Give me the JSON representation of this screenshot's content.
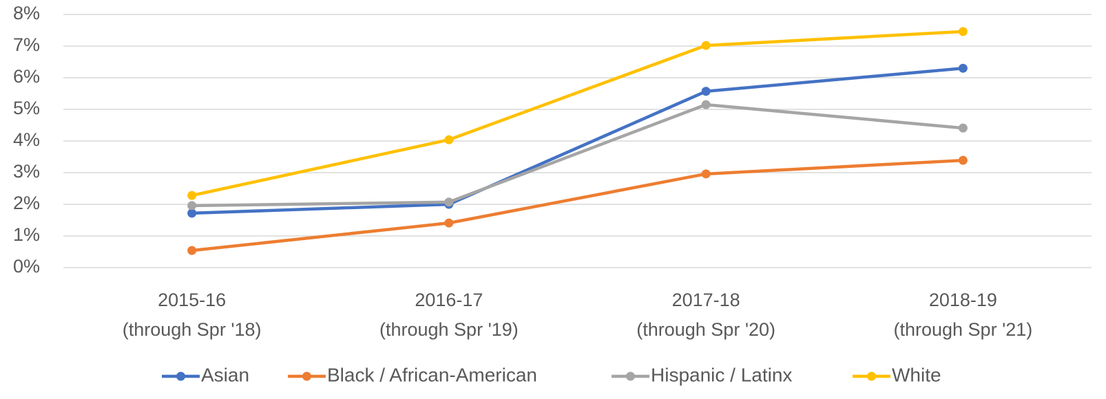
{
  "chart_data": {
    "type": "line",
    "categories": [
      [
        "2015-16",
        "(through Spr '18)"
      ],
      [
        "2016-17",
        "(through Spr '19)"
      ],
      [
        "2017-18",
        "(through Spr '20)"
      ],
      [
        "2018-19",
        "(through Spr '21)"
      ]
    ],
    "series": [
      {
        "name": "Asian",
        "color": "#4472c4",
        "values": [
          1.72,
          2.0,
          5.57,
          6.3
        ]
      },
      {
        "name": "Black / African-American",
        "color": "#ed7d31",
        "values": [
          0.54,
          1.41,
          2.96,
          3.39
        ]
      },
      {
        "name": "Hispanic / Latinx",
        "color": "#a5a5a5",
        "values": [
          1.96,
          2.07,
          5.15,
          4.41
        ]
      },
      {
        "name": "White",
        "color": "#ffc000",
        "values": [
          2.28,
          4.04,
          7.02,
          7.46
        ]
      }
    ],
    "ylim": [
      0,
      8
    ],
    "yticks": [
      {
        "value": 0,
        "label": "0%"
      },
      {
        "value": 1,
        "label": "1%"
      },
      {
        "value": 2,
        "label": "2%"
      },
      {
        "value": 3,
        "label": "3%"
      },
      {
        "value": 4,
        "label": "4%"
      },
      {
        "value": 5,
        "label": "5%"
      },
      {
        "value": 6,
        "label": "6%"
      },
      {
        "value": 7,
        "label": "7%"
      },
      {
        "value": 8,
        "label": "8%"
      }
    ],
    "grid": true,
    "legend": "bottom"
  }
}
